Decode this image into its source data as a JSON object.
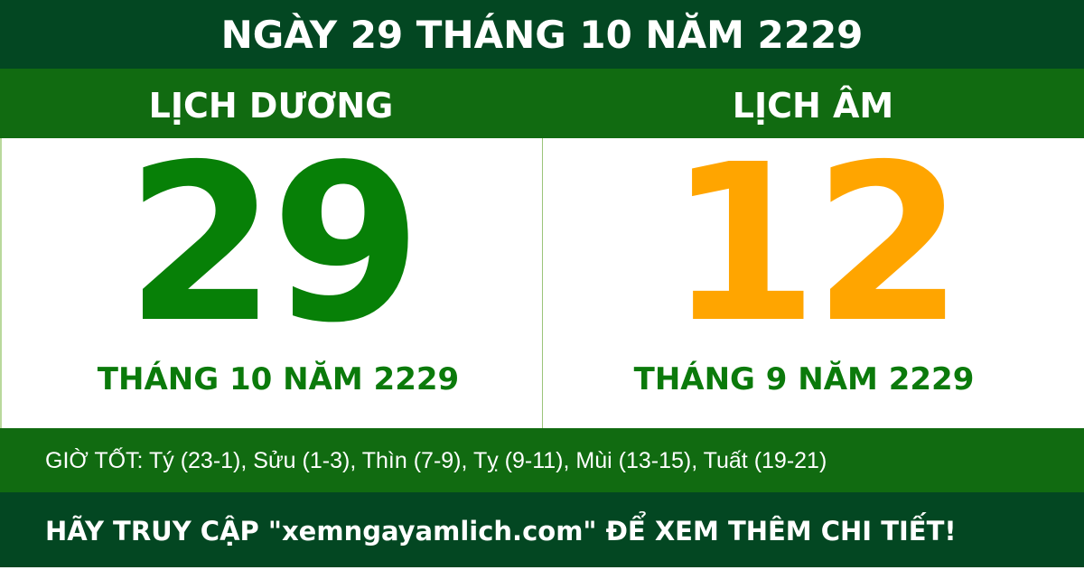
{
  "header": {
    "title": "NGÀY 29 THÁNG 10 NĂM 2229"
  },
  "solar": {
    "label": "LỊCH DƯƠNG",
    "day": "29",
    "month_year": "THÁNG 10 NĂM 2229"
  },
  "lunar": {
    "label": "LỊCH ÂM",
    "day": "12",
    "month_year": "THÁNG 9 NĂM 2229"
  },
  "good_hours": "GIỜ TỐT: Tý (23-1), Sửu (1-3), Thìn (7-9), Tỵ (9-11), Mùi (13-15), Tuất (19-21)",
  "footer": {
    "text": "HÃY TRUY CẬP \"xemngayamlich.com\" ĐỂ XEM THÊM CHI TIẾT!"
  },
  "colors": {
    "dark_green": "#034722",
    "band_green": "#116b11",
    "solar_green": "#078007",
    "lunar_orange": "#ffa500"
  }
}
